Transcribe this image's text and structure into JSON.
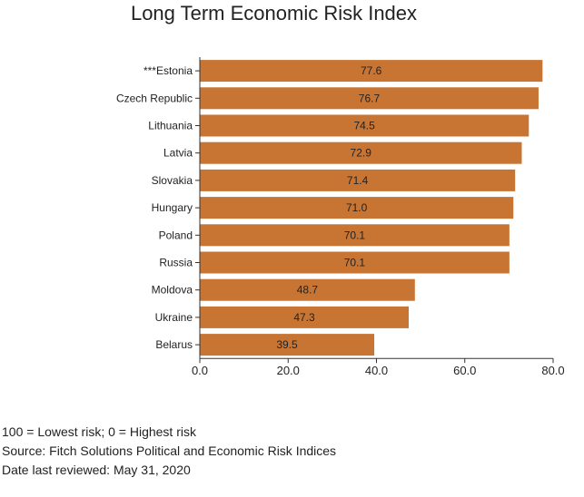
{
  "chart_data": {
    "type": "bar",
    "orientation": "horizontal",
    "title": "Long Term Economic Risk Index",
    "categories": [
      "***Estonia",
      "Czech Republic",
      "Lithuania",
      "Latvia",
      "Slovakia",
      "Hungary",
      "Poland",
      "Russia",
      "Moldova",
      "Ukraine",
      "Belarus"
    ],
    "values": [
      77.6,
      76.7,
      74.5,
      72.9,
      71.4,
      71.0,
      70.1,
      70.1,
      48.7,
      47.3,
      39.5
    ],
    "value_labels": [
      "77.6",
      "76.7",
      "74.5",
      "72.9",
      "71.4",
      "71.0",
      "70.1",
      "70.1",
      "48.7",
      "47.3",
      "39.5"
    ],
    "xlim": [
      0,
      80
    ],
    "xticks": [
      "0.0",
      "20.0",
      "40.0",
      "60.0",
      "80.0"
    ],
    "grid": false,
    "bar_color": "#c87533"
  },
  "notes": {
    "scale": "100 = Lowest risk; 0 = Highest risk",
    "source": "Source: Fitch Solutions Political and Economic Risk Indices",
    "reviewed": "Date last reviewed: May 31, 2020"
  }
}
